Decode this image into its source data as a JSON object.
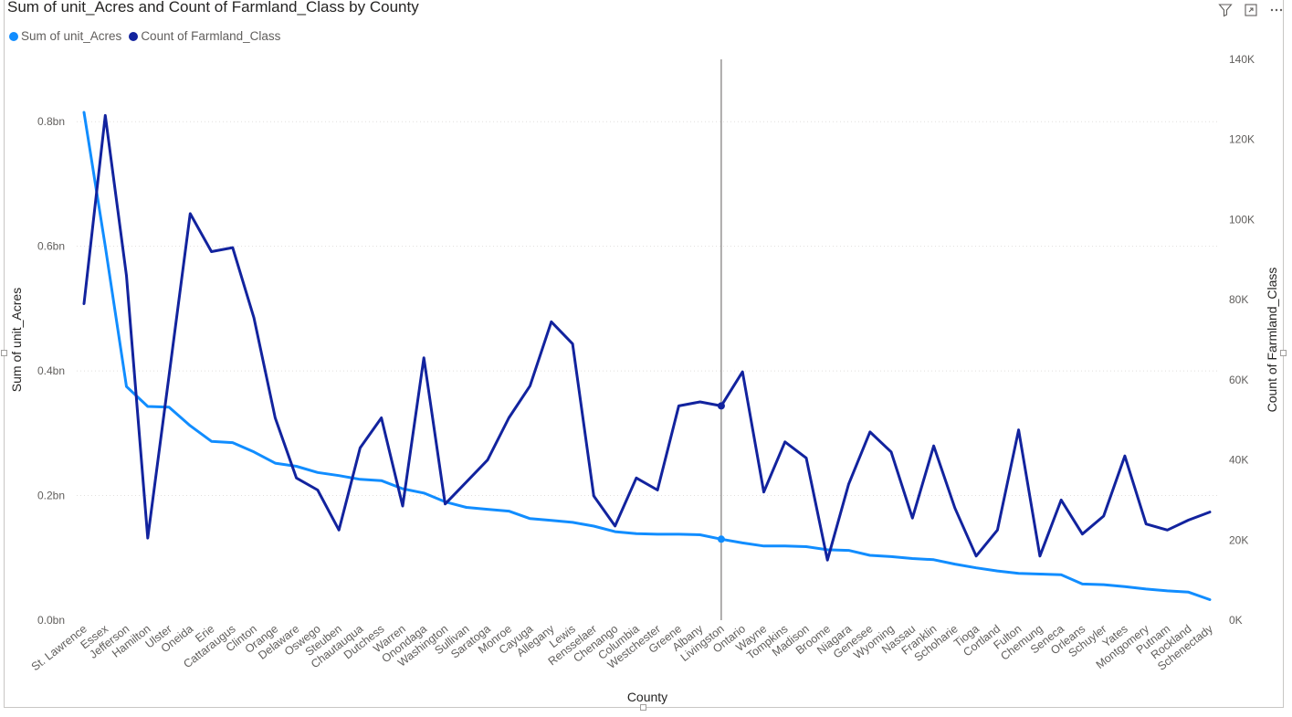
{
  "header": {
    "title": "Sum of unit_Acres and Count of Farmland_Class by County",
    "filter_icon": "filter-icon",
    "focus_icon": "focus-mode-icon",
    "more_icon": "more-options-icon"
  },
  "colors": {
    "acres": "#118DFF",
    "count": "#12239E",
    "axis_text": "#605e5c",
    "grid": "#e1dfdd"
  },
  "chart_data": {
    "type": "line",
    "title": "Sum of unit_Acres and Count of Farmland_Class by County",
    "xlabel": "County",
    "ylabel_left": "Sum of unit_Acres",
    "ylabel_right": "Count of Farmland_Class",
    "legend_position": "top-left",
    "grid": true,
    "ylim_left": [
      0,
      0.9
    ],
    "ylim_right": [
      0,
      140000
    ],
    "yticks_left": [
      "0.0bn",
      "0.2bn",
      "0.4bn",
      "0.6bn",
      "0.8bn"
    ],
    "yticks_left_values": [
      0,
      0.2,
      0.4,
      0.6,
      0.8
    ],
    "yticks_right": [
      "0K",
      "20K",
      "40K",
      "60K",
      "80K",
      "100K",
      "120K",
      "140K"
    ],
    "yticks_right_values": [
      0,
      20000,
      40000,
      60000,
      80000,
      100000,
      120000,
      140000
    ],
    "categories": [
      "St. Lawrence",
      "Essex",
      "Jefferson",
      "Hamilton",
      "Ulster",
      "Oneida",
      "Erie",
      "Cattaraugus",
      "Clinton",
      "Orange",
      "Delaware",
      "Oswego",
      "Steuben",
      "Chautauqua",
      "Dutchess",
      "Warren",
      "Onondaga",
      "Washington",
      "Sullivan",
      "Saratoga",
      "Monroe",
      "Cayuga",
      "Allegany",
      "Lewis",
      "Rensselaer",
      "Chenango",
      "Columbia",
      "Westchester",
      "Greene",
      "Albany",
      "Livingston",
      "Ontario",
      "Wayne",
      "Tompkins",
      "Madison",
      "Broome",
      "Niagara",
      "Genesee",
      "Wyoming",
      "Nassau",
      "Franklin",
      "Schoharie",
      "Tioga",
      "Cortland",
      "Fulton",
      "Chemung",
      "Seneca",
      "Orleans",
      "Schuyler",
      "Yates",
      "Montgomery",
      "Putnam",
      "Rockland",
      "Schenectady"
    ],
    "series": [
      {
        "name": "Sum of unit_Acres",
        "axis": "left",
        "values": [
          0.815,
          0.6,
          0.375,
          0.343,
          0.342,
          0.312,
          0.287,
          0.285,
          0.27,
          0.252,
          0.247,
          0.237,
          0.232,
          0.226,
          0.224,
          0.211,
          0.204,
          0.19,
          0.181,
          0.178,
          0.175,
          0.163,
          0.16,
          0.157,
          0.151,
          0.142,
          0.139,
          0.138,
          0.138,
          0.137,
          0.13,
          0.124,
          0.119,
          0.119,
          0.118,
          0.113,
          0.112,
          0.104,
          0.102,
          0.099,
          0.097,
          0.09,
          0.084,
          0.079,
          0.075,
          0.074,
          0.073,
          0.058,
          0.057,
          0.054,
          0.05,
          0.047,
          0.045,
          0.033
        ]
      },
      {
        "name": "Count of Farmland_Class",
        "axis": "right",
        "values": [
          79000,
          126000,
          86000,
          20500,
          61000,
          101500,
          92000,
          93000,
          75500,
          50500,
          35500,
          32500,
          22500,
          43000,
          50500,
          28500,
          65500,
          29000,
          34500,
          40000,
          50500,
          58500,
          74500,
          69000,
          31000,
          23500,
          35500,
          32500,
          53500,
          54500,
          53500,
          62000,
          32000,
          44500,
          40500,
          15000,
          34000,
          47000,
          42000,
          25500,
          43500,
          28000,
          16000,
          22500,
          47500,
          16000,
          30000,
          21500,
          26000,
          41000,
          24000,
          22500,
          25000,
          27000
        ]
      }
    ],
    "tooltip_marker": {
      "category": "Livingston"
    }
  }
}
